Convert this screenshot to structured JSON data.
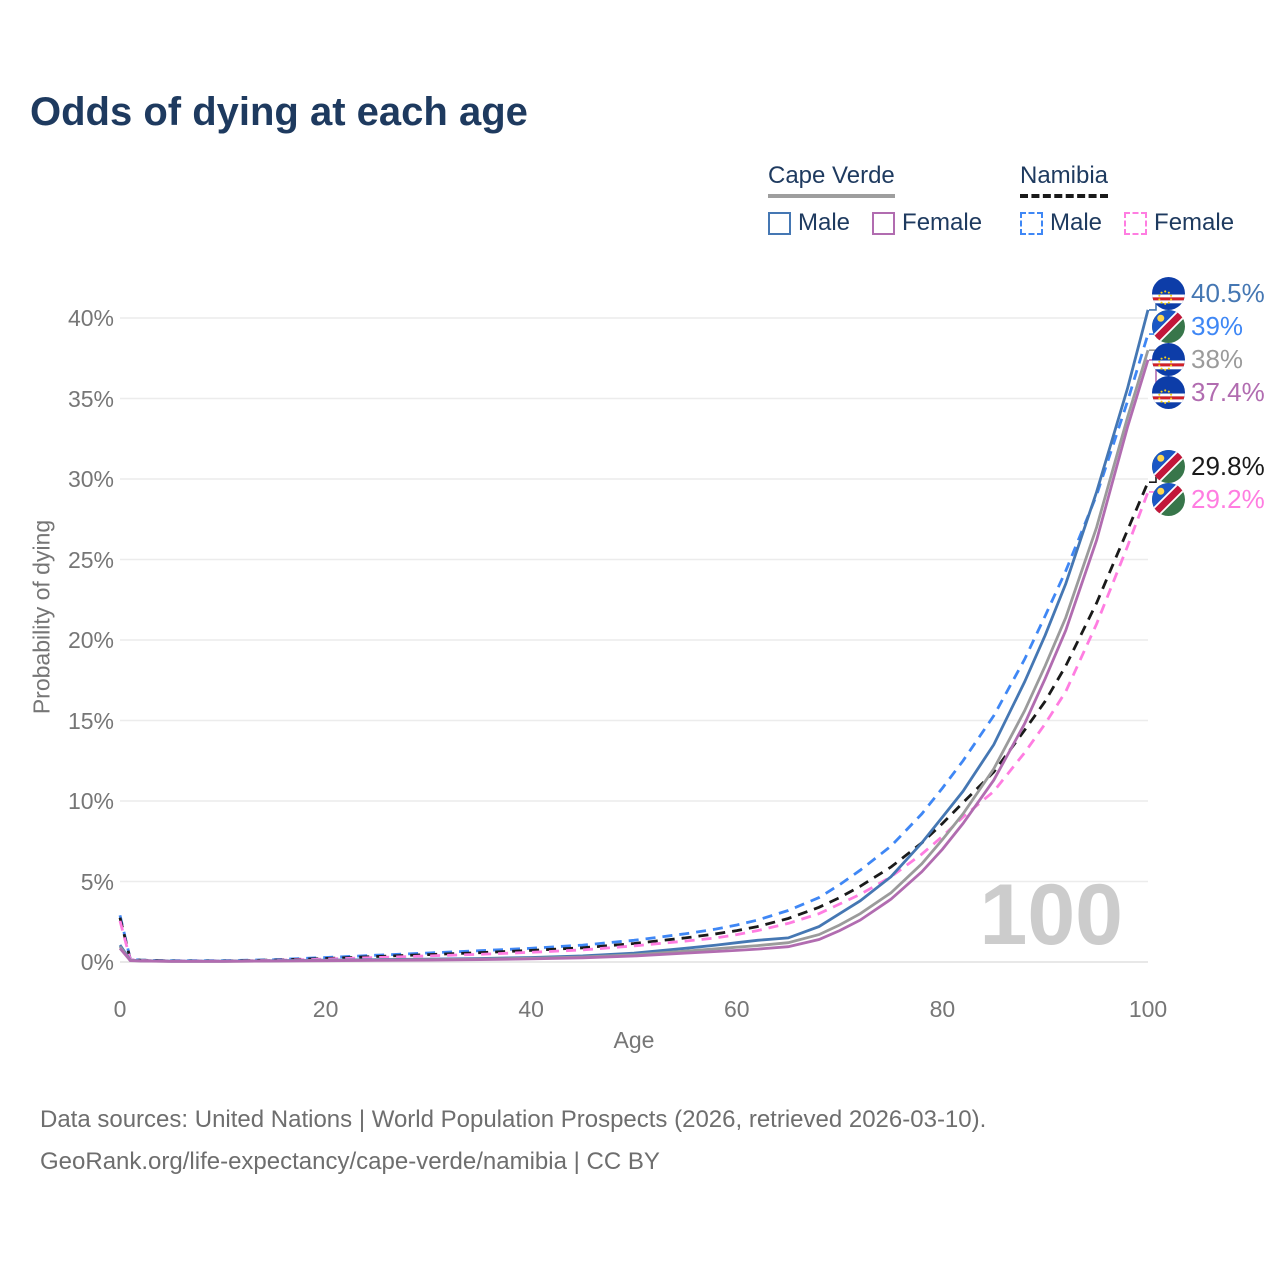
{
  "title": "Odds of dying at each age",
  "colors": {
    "title_text": "#1e3a5f",
    "axis_text": "#767676",
    "gridline": "#ececec",
    "baseline": "#e0e0e0",
    "watermark": "#cccccc",
    "footer_text": "#6e6e6e"
  },
  "legend": {
    "groups": [
      {
        "country": "Cape Verde",
        "line_style": "solid",
        "underline_color": "#9e9e9e",
        "items": [
          {
            "label": "Male",
            "color": "#4577b3",
            "dashed": false
          },
          {
            "label": "Female",
            "color": "#b16cb0",
            "dashed": false
          }
        ]
      },
      {
        "country": "Namibia",
        "line_style": "dashed",
        "underline_color": "#1a1a1a",
        "items": [
          {
            "label": "Male",
            "color": "#3f87f5",
            "dashed": true
          },
          {
            "label": "Female",
            "color": "#ff7de1",
            "dashed": true
          }
        ]
      }
    ]
  },
  "chart_data": {
    "type": "line",
    "title": "Odds of dying at each age",
    "xlabel": "Age",
    "ylabel": "Probability of dying",
    "xlim": [
      0,
      100
    ],
    "ylim": [
      0,
      42
    ],
    "x_ticks": [
      0,
      20,
      40,
      60,
      80,
      100
    ],
    "y_ticks": [
      0,
      5,
      10,
      15,
      20,
      25,
      30,
      35,
      40
    ],
    "y_tick_suffix": "%",
    "grid": "horizontal",
    "legend_position": "top-right",
    "watermark": "100",
    "x": [
      0,
      1,
      2,
      5,
      10,
      15,
      20,
      25,
      30,
      35,
      40,
      45,
      50,
      55,
      58,
      60,
      62,
      65,
      68,
      70,
      72,
      75,
      78,
      80,
      82,
      85,
      88,
      90,
      92,
      95,
      98,
      100
    ],
    "series": [
      {
        "name": "Cape Verde Male",
        "color": "#4577b3",
        "dashed": false,
        "flag": "cape-verde",
        "end_label": "40.5%",
        "values": [
          1.05,
          0.12,
          0.08,
          0.05,
          0.05,
          0.08,
          0.12,
          0.15,
          0.18,
          0.22,
          0.28,
          0.38,
          0.55,
          0.85,
          1.05,
          1.2,
          1.35,
          1.5,
          2.2,
          3.0,
          3.8,
          5.3,
          7.4,
          9.0,
          10.6,
          13.5,
          17.4,
          20.3,
          23.5,
          29.2,
          35.6,
          40.5
        ]
      },
      {
        "name": "Namibia Male",
        "color": "#3f87f5",
        "dashed": true,
        "flag": "namibia",
        "end_label": "39%",
        "values": [
          2.9,
          0.18,
          0.12,
          0.08,
          0.08,
          0.14,
          0.28,
          0.42,
          0.56,
          0.7,
          0.85,
          1.05,
          1.35,
          1.75,
          2.05,
          2.3,
          2.6,
          3.2,
          4.0,
          4.8,
          5.7,
          7.2,
          9.2,
          10.8,
          12.5,
          15.3,
          18.8,
          21.5,
          24.3,
          29.0,
          34.8,
          39.0
        ]
      },
      {
        "name": "Cape Verde",
        "color": "#9b9b9b",
        "dashed": false,
        "flag": "cape-verde",
        "end_label": "38%",
        "values": [
          0.95,
          0.1,
          0.07,
          0.04,
          0.04,
          0.07,
          0.1,
          0.12,
          0.15,
          0.18,
          0.23,
          0.31,
          0.45,
          0.68,
          0.82,
          0.92,
          1.02,
          1.2,
          1.7,
          2.3,
          3.0,
          4.3,
          6.1,
          7.6,
          9.2,
          12.0,
          15.6,
          18.4,
          21.4,
          27.0,
          33.8,
          38.0
        ]
      },
      {
        "name": "Cape Verde Female",
        "color": "#b16cb0",
        "dashed": false,
        "flag": "cape-verde",
        "end_label": "37.4%",
        "values": [
          0.85,
          0.09,
          0.06,
          0.04,
          0.04,
          0.06,
          0.08,
          0.1,
          0.12,
          0.15,
          0.19,
          0.26,
          0.37,
          0.55,
          0.65,
          0.72,
          0.8,
          0.95,
          1.4,
          1.95,
          2.6,
          3.9,
          5.6,
          7.0,
          8.6,
          11.3,
          14.8,
          17.6,
          20.6,
          26.2,
          33.2,
          37.4
        ]
      },
      {
        "name": "Namibia",
        "color": "#1a1a1a",
        "dashed": true,
        "flag": "namibia",
        "end_label": "29.8%",
        "values": [
          2.75,
          0.16,
          0.11,
          0.07,
          0.07,
          0.12,
          0.22,
          0.34,
          0.46,
          0.58,
          0.72,
          0.88,
          1.15,
          1.5,
          1.75,
          1.95,
          2.2,
          2.7,
          3.4,
          4.0,
          4.7,
          5.9,
          7.4,
          8.6,
          9.9,
          11.8,
          14.4,
          16.2,
          18.4,
          22.3,
          26.8,
          29.8
        ]
      },
      {
        "name": "Namibia Female",
        "color": "#ff7de1",
        "dashed": true,
        "flag": "namibia",
        "end_label": "29.2%",
        "values": [
          2.55,
          0.15,
          0.1,
          0.06,
          0.06,
          0.1,
          0.18,
          0.28,
          0.38,
          0.48,
          0.6,
          0.75,
          1.0,
          1.3,
          1.5,
          1.7,
          1.95,
          2.4,
          3.0,
          3.6,
          4.2,
          5.3,
          6.7,
          7.8,
          9.0,
          10.6,
          13.0,
          14.8,
          16.8,
          21.0,
          25.8,
          29.2
        ]
      }
    ]
  },
  "footer": {
    "line1": "Data sources: United Nations | World Population Prospects (2026, retrieved 2026-03-10).",
    "line2": "GeoRank.org/life-expectancy/cape-verde/namibia | CC BY"
  }
}
